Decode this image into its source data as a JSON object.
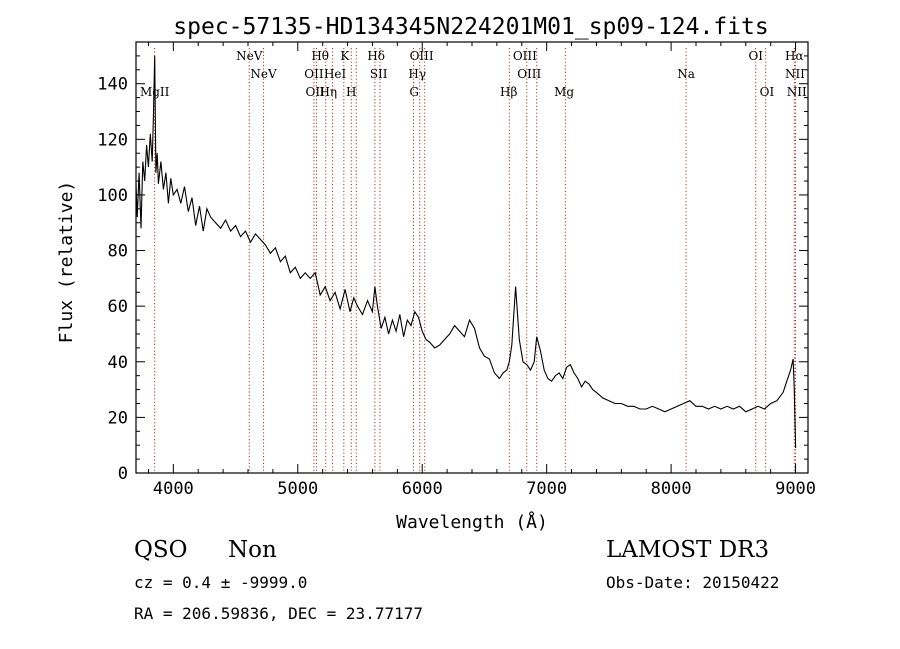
{
  "chart_data": {
    "type": "line",
    "title": "spec-57135-HD134345N224201M01_sp09-124.fits",
    "xlabel": "Wavelength (Å)",
    "ylabel": "Flux (relative)",
    "xlim": [
      3700,
      9100
    ],
    "ylim": [
      0,
      155
    ],
    "xticks": [
      4000,
      5000,
      6000,
      7000,
      8000,
      9000
    ],
    "yticks": [
      0,
      20,
      40,
      60,
      80,
      100,
      120,
      140
    ],
    "xtick_labels": [
      "4000",
      "5000",
      "6000",
      "7000",
      "8000",
      "9000"
    ],
    "ytick_labels": [
      "0",
      "20",
      "40",
      "60",
      "80",
      "100",
      "120",
      "140"
    ],
    "grid": false,
    "series": [
      {
        "color": "#000000",
        "x": [
          3700,
          3710,
          3725,
          3740,
          3755,
          3770,
          3785,
          3800,
          3815,
          3830,
          3840,
          3850,
          3860,
          3870,
          3880,
          3900,
          3920,
          3940,
          3960,
          3980,
          4000,
          4030,
          4060,
          4090,
          4120,
          4150,
          4180,
          4210,
          4240,
          4270,
          4300,
          4340,
          4380,
          4420,
          4460,
          4500,
          4540,
          4580,
          4620,
          4660,
          4700,
          4740,
          4780,
          4820,
          4860,
          4900,
          4940,
          4980,
          5020,
          5060,
          5100,
          5140,
          5180,
          5220,
          5260,
          5300,
          5340,
          5380,
          5420,
          5450,
          5480,
          5520,
          5560,
          5600,
          5620,
          5640,
          5670,
          5700,
          5730,
          5760,
          5790,
          5820,
          5850,
          5880,
          5910,
          5940,
          5970,
          6000,
          6030,
          6060,
          6100,
          6140,
          6180,
          6220,
          6260,
          6300,
          6340,
          6380,
          6420,
          6460,
          6500,
          6540,
          6580,
          6620,
          6650,
          6680,
          6700,
          6720,
          6750,
          6780,
          6810,
          6840,
          6870,
          6900,
          6920,
          6950,
          6980,
          7010,
          7040,
          7070,
          7100,
          7130,
          7160,
          7190,
          7220,
          7250,
          7280,
          7310,
          7340,
          7370,
          7400,
          7450,
          7500,
          7550,
          7600,
          7650,
          7700,
          7750,
          7800,
          7850,
          7900,
          7950,
          8000,
          8050,
          8100,
          8150,
          8200,
          8250,
          8300,
          8350,
          8400,
          8450,
          8500,
          8550,
          8600,
          8650,
          8700,
          8750,
          8800,
          8850,
          8900,
          8930,
          8960,
          8980,
          8990,
          9000
        ],
        "y": [
          104,
          92,
          108,
          88,
          112,
          105,
          118,
          110,
          122,
          112,
          128,
          150,
          108,
          115,
          104,
          112,
          102,
          108,
          97,
          106,
          100,
          102,
          97,
          103,
          94,
          99,
          89,
          96,
          87,
          95,
          92,
          90,
          88,
          91,
          87,
          89,
          85,
          87,
          83,
          86,
          84,
          82,
          79,
          81,
          76,
          78,
          72,
          74,
          70,
          72,
          70,
          72,
          64,
          67,
          62,
          65,
          59,
          66,
          58,
          63,
          60,
          57,
          62,
          58,
          67,
          60,
          52,
          56,
          50,
          55,
          51,
          57,
          49,
          55,
          53,
          58,
          56,
          51,
          48,
          47,
          45,
          46,
          48,
          50,
          53,
          51,
          49,
          55,
          52,
          45,
          42,
          41,
          36,
          34,
          36,
          37,
          40,
          46,
          67,
          48,
          40,
          39,
          37,
          40,
          49,
          44,
          37,
          34,
          33,
          35,
          36,
          34,
          38,
          39,
          36,
          34,
          31,
          33,
          32,
          30,
          29,
          27,
          26,
          25,
          25,
          24,
          24,
          23,
          23,
          24,
          23,
          22,
          23,
          24,
          25,
          26,
          24,
          24,
          23,
          24,
          23,
          24,
          23,
          24,
          22,
          23,
          24,
          23,
          25,
          26,
          29,
          33,
          37,
          41,
          30,
          9
        ]
      }
    ],
    "annotations": [
      {
        "label": "MgII",
        "x": 3850,
        "row": 3
      },
      {
        "label": "NeV",
        "x": 4610,
        "row": 1
      },
      {
        "label": "NeV",
        "x": 4725,
        "row": 2
      },
      {
        "label": "OII",
        "x": 5130,
        "row": 2
      },
      {
        "label": "OII",
        "x": 5140,
        "row": 3
      },
      {
        "label": "Hθ",
        "x": 5180,
        "row": 1
      },
      {
        "label": "Hη",
        "x": 5245,
        "row": 3
      },
      {
        "label": "HeI",
        "x": 5300,
        "row": 2
      },
      {
        "label": "K",
        "x": 5378,
        "row": 1
      },
      {
        "label": "H",
        "x": 5430,
        "row": 3
      },
      {
        "label": "Hδ",
        "x": 5630,
        "row": 1
      },
      {
        "label": "SII",
        "x": 5650,
        "row": 2
      },
      {
        "label": "OIII",
        "x": 5995,
        "row": 1
      },
      {
        "label": "Hγ",
        "x": 5960,
        "row": 2
      },
      {
        "label": "G",
        "x": 5935,
        "row": 3
      },
      {
        "label": "Hβ",
        "x": 6695,
        "row": 3
      },
      {
        "label": "OIII",
        "x": 6825,
        "row": 1
      },
      {
        "label": "OIII",
        "x": 6860,
        "row": 2
      },
      {
        "label": "Mg",
        "x": 7140,
        "row": 3
      },
      {
        "label": "Na",
        "x": 8120,
        "row": 2
      },
      {
        "label": "OI",
        "x": 8680,
        "row": 1
      },
      {
        "label": "OI",
        "x": 8770,
        "row": 3
      },
      {
        "label": "Hα",
        "x": 8990,
        "row": 1
      },
      {
        "label": "NII",
        "x": 8995,
        "row": 2
      },
      {
        "label": "NII",
        "x": 9010,
        "row": 3
      }
    ],
    "line_markers": [
      3850,
      4610,
      4725,
      5130,
      5150,
      5225,
      5280,
      5370,
      5430,
      5470,
      5620,
      5660,
      5930,
      5980,
      6020,
      6700,
      6840,
      6920,
      7150,
      8120,
      8680,
      8760,
      8990,
      9000
    ]
  },
  "info": {
    "class": "QSO",
    "subclass": "Non",
    "cz": "cz = 0.4 ± -9999.0",
    "radec": "RA = 206.59836, DEC =  23.77177",
    "survey": "LAMOST DR3",
    "obsdate": "Obs-Date: 20150422"
  }
}
